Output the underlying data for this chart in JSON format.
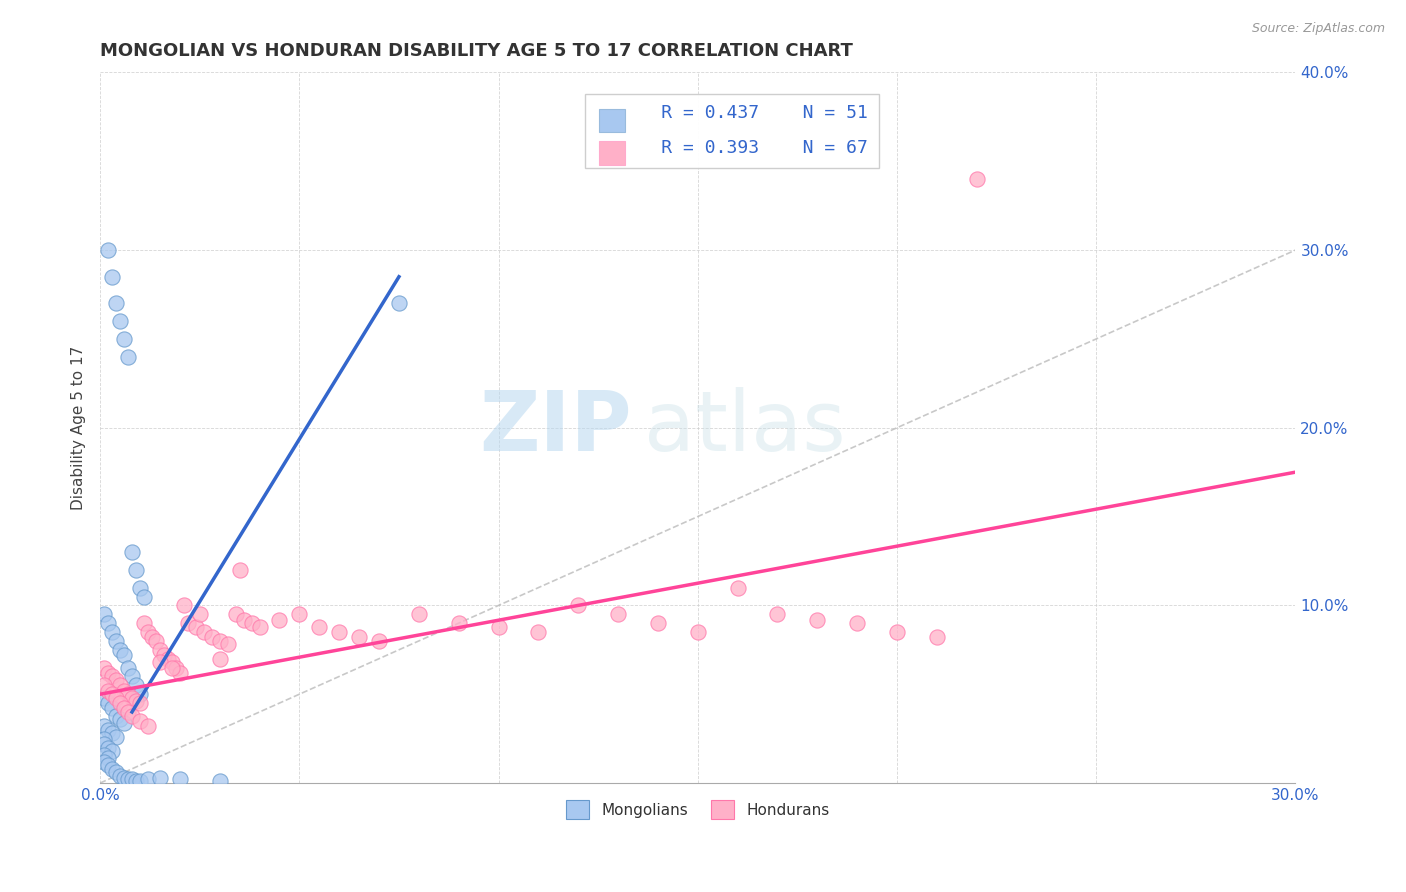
{
  "title": "MONGOLIAN VS HONDURAN DISABILITY AGE 5 TO 17 CORRELATION CHART",
  "source_text": "Source: ZipAtlas.com",
  "ylabel": "Disability Age 5 to 17",
  "xlim": [
    0.0,
    0.3
  ],
  "ylim": [
    0.0,
    0.4
  ],
  "xticks": [
    0.0,
    0.05,
    0.1,
    0.15,
    0.2,
    0.25,
    0.3
  ],
  "yticks": [
    0.0,
    0.1,
    0.2,
    0.3,
    0.4
  ],
  "mongolian_color": "#A8C8F0",
  "honduran_color": "#FFB0C8",
  "mongolian_line_color": "#3366CC",
  "honduran_line_color": "#FF4499",
  "ref_line_color": "#BBBBBB",
  "legend_R1": "R = 0.437",
  "legend_N1": "N = 51",
  "legend_R2": "R = 0.393",
  "legend_N2": "N = 67",
  "mongolian_trend_x": [
    0.008,
    0.075
  ],
  "mongolian_trend_y": [
    0.04,
    0.285
  ],
  "honduran_trend_x": [
    0.0,
    0.3
  ],
  "honduran_trend_y": [
    0.05,
    0.175
  ],
  "ref_line_x": [
    0.0,
    0.3
  ],
  "ref_line_y": [
    0.0,
    0.3
  ],
  "mongolians_x": [
    0.002,
    0.003,
    0.004,
    0.005,
    0.006,
    0.007,
    0.008,
    0.009,
    0.01,
    0.011,
    0.001,
    0.002,
    0.003,
    0.004,
    0.005,
    0.006,
    0.007,
    0.008,
    0.009,
    0.01,
    0.001,
    0.002,
    0.003,
    0.004,
    0.005,
    0.006,
    0.001,
    0.002,
    0.003,
    0.004,
    0.001,
    0.001,
    0.002,
    0.003,
    0.001,
    0.002,
    0.001,
    0.002,
    0.003,
    0.004,
    0.005,
    0.006,
    0.007,
    0.008,
    0.009,
    0.01,
    0.012,
    0.015,
    0.02,
    0.03,
    0.075
  ],
  "mongolians_y": [
    0.3,
    0.285,
    0.27,
    0.26,
    0.25,
    0.24,
    0.13,
    0.12,
    0.11,
    0.105,
    0.095,
    0.09,
    0.085,
    0.08,
    0.075,
    0.072,
    0.065,
    0.06,
    0.055,
    0.05,
    0.048,
    0.045,
    0.042,
    0.038,
    0.036,
    0.034,
    0.032,
    0.03,
    0.028,
    0.026,
    0.025,
    0.022,
    0.02,
    0.018,
    0.016,
    0.014,
    0.012,
    0.01,
    0.008,
    0.006,
    0.004,
    0.003,
    0.002,
    0.002,
    0.001,
    0.001,
    0.002,
    0.003,
    0.002,
    0.001,
    0.27
  ],
  "hondurans_x": [
    0.001,
    0.002,
    0.003,
    0.004,
    0.005,
    0.006,
    0.007,
    0.008,
    0.009,
    0.01,
    0.011,
    0.012,
    0.013,
    0.014,
    0.015,
    0.016,
    0.017,
    0.018,
    0.019,
    0.02,
    0.022,
    0.024,
    0.026,
    0.028,
    0.03,
    0.032,
    0.034,
    0.036,
    0.038,
    0.04,
    0.045,
    0.05,
    0.055,
    0.06,
    0.065,
    0.07,
    0.08,
    0.09,
    0.1,
    0.11,
    0.12,
    0.13,
    0.14,
    0.15,
    0.16,
    0.17,
    0.18,
    0.19,
    0.2,
    0.21,
    0.001,
    0.002,
    0.003,
    0.004,
    0.005,
    0.006,
    0.007,
    0.008,
    0.01,
    0.012,
    0.015,
    0.018,
    0.021,
    0.025,
    0.03,
    0.035,
    0.22
  ],
  "hondurans_y": [
    0.065,
    0.062,
    0.06,
    0.058,
    0.055,
    0.052,
    0.05,
    0.048,
    0.046,
    0.045,
    0.09,
    0.085,
    0.082,
    0.08,
    0.075,
    0.072,
    0.07,
    0.068,
    0.065,
    0.062,
    0.09,
    0.088,
    0.085,
    0.082,
    0.08,
    0.078,
    0.095,
    0.092,
    0.09,
    0.088,
    0.092,
    0.095,
    0.088,
    0.085,
    0.082,
    0.08,
    0.095,
    0.09,
    0.088,
    0.085,
    0.1,
    0.095,
    0.09,
    0.085,
    0.11,
    0.095,
    0.092,
    0.09,
    0.085,
    0.082,
    0.055,
    0.052,
    0.05,
    0.048,
    0.045,
    0.042,
    0.04,
    0.038,
    0.035,
    0.032,
    0.068,
    0.065,
    0.1,
    0.095,
    0.07,
    0.12,
    0.34
  ],
  "watermark_zip": "ZIP",
  "watermark_atlas": "atlas"
}
